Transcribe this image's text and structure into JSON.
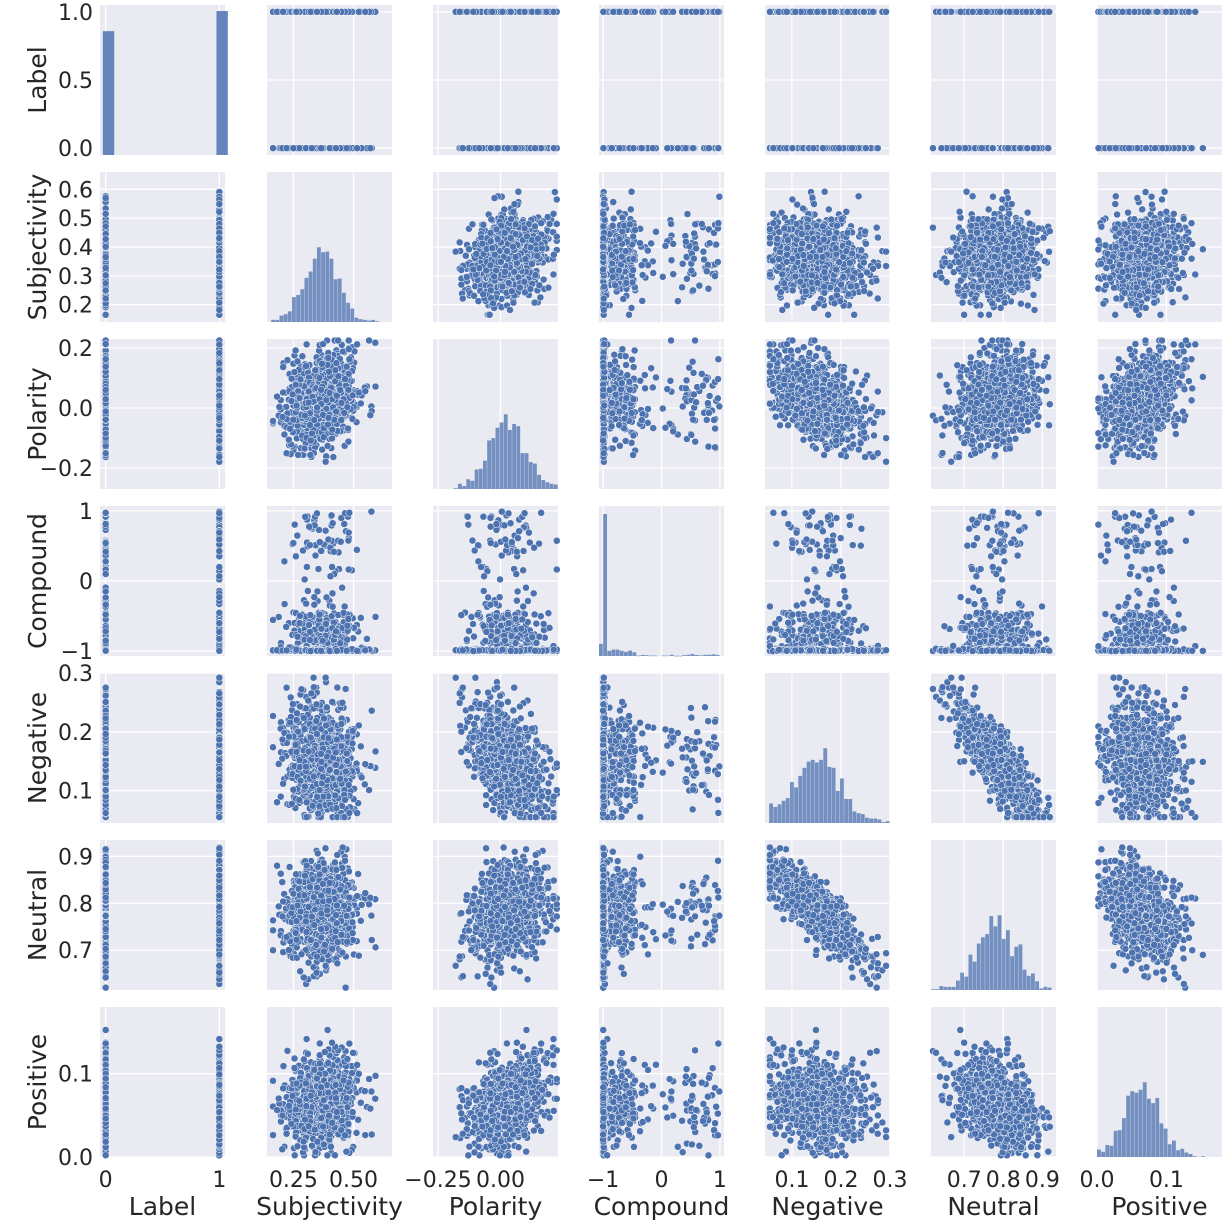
{
  "chart_data": {
    "type": "pairplot",
    "title": "",
    "variables": [
      "Label",
      "Subjectivity",
      "Polarity",
      "Compound",
      "Negative",
      "Neutral",
      "Positive"
    ],
    "n_points": 1000,
    "marker_color": "#4c72b0",
    "panel_background": "#eaeaf2",
    "grid_color": "#ffffff",
    "axes": {
      "Label": {
        "lim": [
          -0.05,
          1.05
        ],
        "ticks": [
          0,
          1
        ],
        "tick_labels": [
          "0",
          "1"
        ],
        "y_ticks": [
          0.0,
          0.5,
          1.0
        ],
        "y_tick_labels": [
          "0.0",
          "0.5",
          "1.0"
        ],
        "mean": 0.5,
        "sd": 0.5
      },
      "Subjectivity": {
        "lim": [
          0.14,
          0.66
        ],
        "ticks": [
          0.25,
          0.5
        ],
        "tick_labels": [
          "0.25",
          "0.50"
        ],
        "y_ticks": [
          0.2,
          0.3,
          0.4,
          0.5,
          0.6
        ],
        "y_tick_labels": [
          "0.2",
          "0.3",
          "0.4",
          "0.5",
          "0.6"
        ],
        "mean": 0.37,
        "sd": 0.07
      },
      "Polarity": {
        "lim": [
          -0.27,
          0.23
        ],
        "ticks": [
          -0.25,
          0.0
        ],
        "tick_labels": [
          "−0.25",
          "0.00"
        ],
        "y_ticks": [
          -0.2,
          0.0,
          0.2
        ],
        "y_tick_labels": [
          "−0.2",
          "0.0",
          "0.2"
        ],
        "mean": 0.03,
        "sd": 0.07
      },
      "Compound": {
        "lim": [
          -1.07,
          1.07
        ],
        "ticks": [
          -1,
          0,
          1
        ],
        "tick_labels": [
          "−1",
          "0",
          "1"
        ],
        "y_ticks": [
          -1,
          0,
          1
        ],
        "y_tick_labels": [
          "−1",
          "0",
          "1"
        ],
        "mean": -0.9,
        "sd": 0.35
      },
      "Negative": {
        "lim": [
          0.045,
          0.3
        ],
        "ticks": [
          0.1,
          0.2,
          0.3
        ],
        "tick_labels": [
          "0.1",
          "0.2",
          "0.3"
        ],
        "y_ticks": [
          0.1,
          0.2,
          0.3
        ],
        "y_tick_labels": [
          "0.1",
          "0.2",
          "0.3"
        ],
        "mean": 0.15,
        "sd": 0.045
      },
      "Neutral": {
        "lim": [
          0.615,
          0.935
        ],
        "ticks": [
          0.7,
          0.8,
          0.9
        ],
        "tick_labels": [
          "0.7",
          "0.8",
          "0.9"
        ],
        "y_ticks": [
          0.7,
          0.8,
          0.9
        ],
        "y_tick_labels": [
          "0.7",
          "0.8",
          "0.9"
        ],
        "mean": 0.78,
        "sd": 0.045
      },
      "Positive": {
        "lim": [
          0.0,
          0.18
        ],
        "ticks": [
          0.0,
          0.1
        ],
        "tick_labels": [
          "0.0",
          "0.1"
        ],
        "y_ticks": [
          0.0,
          0.1
        ],
        "y_tick_labels": [
          "0.0",
          "0.1"
        ],
        "mean": 0.065,
        "sd": 0.025
      }
    },
    "correlations": {
      "Polarity~Subjectivity": 0.2,
      "Negative~Polarity": -0.45,
      "Neutral~Negative": -0.92,
      "Positive~Neutral": -0.4,
      "Positive~Polarity": 0.35
    },
    "diagonal": {
      "Label": {
        "bins": [
          0,
          1
        ],
        "heights": [
          0.86,
          1.0
        ]
      },
      "Compound": {
        "note": "spike at -1"
      }
    }
  }
}
